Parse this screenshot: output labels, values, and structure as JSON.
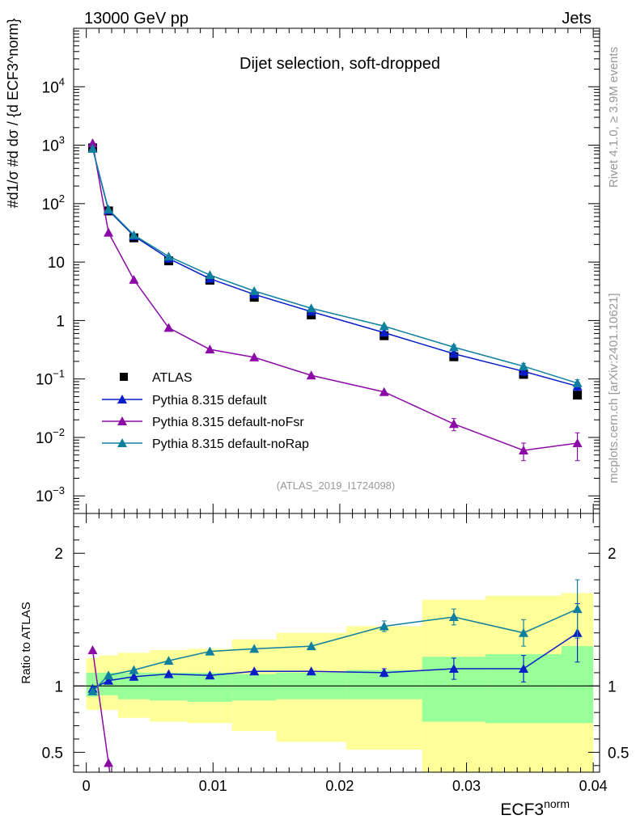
{
  "header": {
    "left": "13000 GeV pp",
    "right": "Jets"
  },
  "side_texts": {
    "rivet": "Rivet 4.1.0, ≥ 3.9M events",
    "mcplots": "mcplots.cern.ch [arXiv:2401.10621]"
  },
  "chart_data": {
    "type": "line",
    "title": "Dijet selection, soft-dropped",
    "analysis_tag": "(ATLAS_2019_I1724098)",
    "xlabel_main": "ECF3",
    "xlabel_sup": "norm",
    "ylabel_main": "#d1/σ #d dσ / {d ECF3^norm}",
    "ylabel_ratio": "Ratio to ATLAS",
    "xlim": [
      -0.001,
      0.0405
    ],
    "ylim_main": [
      0.0005,
      100000
    ],
    "yscale_main": "log",
    "ylim_ratio": [
      0.35,
      2.3
    ],
    "x_ticks": [
      0,
      0.01,
      0.02,
      0.03,
      0.04
    ],
    "x_tick_labels": [
      "0",
      "0.01",
      "0.02",
      "0.03",
      "0.04"
    ],
    "y_ticks_main": [
      {
        "value": 0.001,
        "base": "10",
        "exp": "−3"
      },
      {
        "value": 0.01,
        "base": "10",
        "exp": "−2"
      },
      {
        "value": 0.1,
        "base": "10",
        "exp": "−1"
      },
      {
        "value": 1,
        "base": "1",
        "exp": ""
      },
      {
        "value": 10,
        "base": "10",
        "exp": ""
      },
      {
        "value": 100,
        "base": "10",
        "exp": "2"
      },
      {
        "value": 1000,
        "base": "10",
        "exp": "3"
      },
      {
        "value": 10000,
        "base": "10",
        "exp": "4"
      }
    ],
    "y_ticks_ratio": [
      0.5,
      1,
      2
    ],
    "y_tick_labels_ratio": [
      "0.5",
      "1",
      "2"
    ],
    "bin_edges": [
      0,
      0.001,
      0.0025,
      0.005,
      0.008,
      0.0115,
      0.015,
      0.0205,
      0.0265,
      0.0315,
      0.0375,
      0.04
    ],
    "x": [
      0.0005,
      0.00175,
      0.00375,
      0.0065,
      0.00975,
      0.01325,
      0.01775,
      0.0235,
      0.029,
      0.0345,
      0.03875
    ],
    "legend": [
      "ATLAS",
      "Pythia 8.315 default",
      "Pythia 8.315 default-noFsr",
      "Pythia 8.315 default-noRap"
    ],
    "series": [
      {
        "name": "ATLAS",
        "color": "#000000",
        "marker": "square",
        "values": [
          900,
          75,
          26,
          10.5,
          4.9,
          2.5,
          1.25,
          0.55,
          0.24,
          0.12,
          0.053
        ]
      },
      {
        "name": "Pythia 8.315 default",
        "color": "#0a1ec8",
        "marker": "triangle",
        "values": [
          880,
          77,
          28,
          11.5,
          5.2,
          2.8,
          1.42,
          0.62,
          0.27,
          0.135,
          0.075
        ],
        "err": [
          0,
          0,
          0,
          0,
          0,
          0,
          0,
          0.02,
          0.02,
          0.02,
          0.012
        ]
      },
      {
        "name": "Pythia 8.315 default-noFsr",
        "color": "#8c0aa6",
        "marker": "triangle",
        "values": [
          1080,
          32,
          5.0,
          0.75,
          0.32,
          0.235,
          0.115,
          0.06,
          0.017,
          0.006,
          0.008
        ],
        "err": [
          0,
          0,
          0,
          0,
          0,
          0,
          0,
          0,
          0.004,
          0.002,
          0.004
        ]
      },
      {
        "name": "Pythia 8.315 default-noRap",
        "color": "#0f7fa0",
        "marker": "triangle",
        "values": [
          870,
          80,
          29,
          12.5,
          6.0,
          3.2,
          1.62,
          0.8,
          0.35,
          0.165,
          0.085
        ],
        "err": [
          0,
          0,
          0,
          0,
          0,
          0,
          0,
          0.03,
          0.03,
          0.02,
          0.012
        ]
      }
    ],
    "ratio_series": [
      {
        "name": "Pythia 8.315 default",
        "color": "#0a1ec8",
        "values": [
          0.98,
          1.04,
          1.07,
          1.09,
          1.08,
          1.11,
          1.11,
          1.1,
          1.13,
          1.13,
          1.4
        ],
        "err": [
          0,
          0,
          0,
          0,
          0,
          0,
          0,
          0.03,
          0.08,
          0.1,
          0.22
        ]
      },
      {
        "name": "Pythia 8.315 default-noFsr",
        "color": "#8c0aa6",
        "values": [
          1.27,
          0.42
        ],
        "err": [
          0,
          0
        ]
      },
      {
        "name": "Pythia 8.315 default-noRap",
        "color": "#0f7fa0",
        "values": [
          0.96,
          1.08,
          1.12,
          1.19,
          1.26,
          1.28,
          1.3,
          1.45,
          1.52,
          1.4,
          1.58
        ],
        "err": [
          0,
          0,
          0,
          0,
          0,
          0,
          0,
          0.04,
          0.06,
          0.1,
          0.22
        ]
      }
    ],
    "bands": {
      "green": {
        "color": "#99ff99",
        "lo": [
          0.92,
          0.93,
          0.9,
          0.89,
          0.88,
          0.89,
          0.9,
          0.9,
          0.73,
          0.72,
          0.72
        ],
        "hi": [
          1.1,
          1.1,
          1.1,
          1.1,
          1.1,
          1.09,
          1.1,
          1.12,
          1.22,
          1.24,
          1.3
        ]
      },
      "yellow": {
        "color": "#ffff99",
        "lo": [
          0.82,
          0.82,
          0.76,
          0.73,
          0.72,
          0.66,
          0.58,
          0.52,
          0.33,
          0.33,
          0.33
        ],
        "hi": [
          1.21,
          1.23,
          1.25,
          1.27,
          1.28,
          1.35,
          1.4,
          1.45,
          1.65,
          1.68,
          1.7
        ]
      }
    },
    "reference_line": 1
  }
}
